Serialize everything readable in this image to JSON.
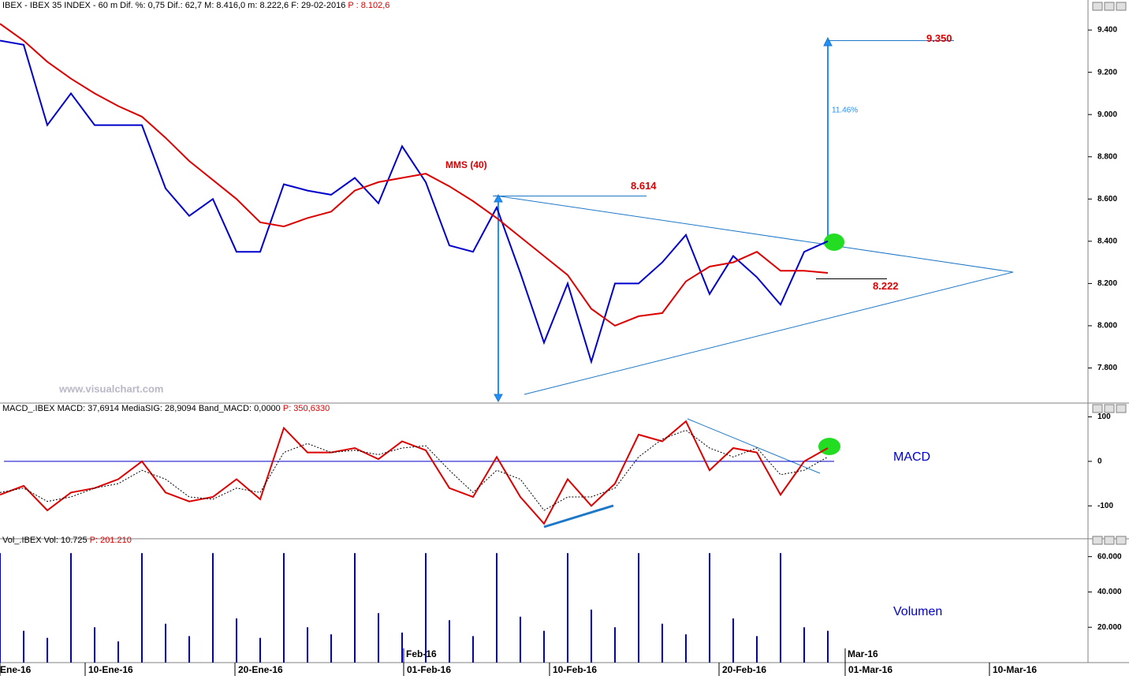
{
  "chart_data": [
    {
      "type": "line",
      "title": "IBEX - IBEX 35 INDEX -  60 m  Dif. %: 0,75  Dif.: 62,7  M: 8.416,0  m: 8.222,6  F: 29-02-2016",
      "title_p": "P : 8.102,6",
      "x": [
        0,
        3,
        6,
        9,
        12,
        15,
        18,
        21,
        24,
        27,
        30,
        33,
        36,
        39,
        42,
        45,
        48,
        51,
        54,
        57,
        60,
        63,
        66,
        69,
        72,
        75,
        78,
        81,
        84,
        87,
        90,
        93,
        96,
        99,
        102,
        105
      ],
      "xlim": [
        0,
        138
      ],
      "ylim": [
        7645,
        9490
      ],
      "yticks": [
        {
          "value": 7800,
          "label": "7.800"
        },
        {
          "value": 8000,
          "label": "8.000"
        },
        {
          "value": 8200,
          "label": "8.200"
        },
        {
          "value": 8400,
          "label": "8.400"
        },
        {
          "value": 8600,
          "label": "8.600"
        },
        {
          "value": 8800,
          "label": "8.800"
        },
        {
          "value": 9000,
          "label": "9.000"
        },
        {
          "value": 9200,
          "label": "9.200"
        },
        {
          "value": 9400,
          "label": "9.400"
        }
      ],
      "series": [
        {
          "color": "#0000cc",
          "values": [
            9350,
            9330,
            8950,
            9100,
            8950,
            8950,
            8950,
            8650,
            8520,
            8600,
            8350,
            8350,
            8670,
            8640,
            8620,
            8700,
            8580,
            8850,
            8680,
            8380,
            8350,
            8560,
            8250,
            7920,
            8200,
            7830,
            8200,
            8200,
            8300,
            8430,
            8150,
            8330,
            8230,
            8100,
            8350,
            8400
          ]
        },
        {
          "name": "MMS (40)",
          "color": "#dd0000",
          "values": [
            9430,
            9350,
            9250,
            9170,
            9100,
            9040,
            8990,
            8890,
            8780,
            8690,
            8600,
            8490,
            8470,
            8510,
            8540,
            8640,
            8680,
            8700,
            8720,
            8660,
            8590,
            8510,
            8420,
            8330,
            8240,
            8080,
            8000,
            8045,
            8060,
            8210,
            8280,
            8300,
            8350,
            8260,
            8260,
            8250
          ]
        }
      ],
      "annotations": [
        {
          "value": 8614,
          "label": "8.614"
        },
        {
          "value": 9350,
          "label": "9.350"
        },
        {
          "value": 8222,
          "label": "8.222"
        }
      ],
      "target_label": "11.46%",
      "watermark": "www.visualchart.com"
    },
    {
      "type": "line",
      "title": "MACD_.IBEX MACD: 37,6914  MediaSIG: 28,9094  Band_MACD: 0,0000",
      "title_p": "P: 350,6330",
      "label": "MACD",
      "x": [
        0,
        3,
        6,
        9,
        12,
        15,
        18,
        21,
        24,
        27,
        30,
        33,
        36,
        39,
        42,
        45,
        48,
        51,
        54,
        57,
        60,
        63,
        66,
        69,
        72,
        75,
        78,
        81,
        84,
        87,
        90,
        93,
        96,
        99,
        102,
        105
      ],
      "xlim": [
        0,
        138
      ],
      "ylim": [
        -165,
        115
      ],
      "yticks": [
        -100,
        0,
        100
      ],
      "series": [
        {
          "color": "#dd0000",
          "values": [
            -75,
            -55,
            -110,
            -70,
            -60,
            -40,
            0,
            -70,
            -90,
            -80,
            -40,
            -85,
            75,
            20,
            20,
            30,
            5,
            45,
            25,
            -60,
            -80,
            10,
            -80,
            -140,
            -40,
            -100,
            -50,
            60,
            45,
            90,
            -20,
            30,
            20,
            -75,
            0,
            30
          ]
        },
        {
          "color": "#000000",
          "dashed": true,
          "values": [
            -70,
            -60,
            -90,
            -80,
            -60,
            -50,
            -20,
            -40,
            -80,
            -85,
            -60,
            -70,
            20,
            40,
            20,
            25,
            15,
            30,
            35,
            -20,
            -70,
            -20,
            -40,
            -110,
            -80,
            -80,
            -60,
            10,
            50,
            70,
            30,
            10,
            30,
            -30,
            -20,
            10
          ]
        }
      ]
    },
    {
      "type": "bar",
      "title": "Vol_.IBEX Vol: 10.725",
      "title_p": "P: 201.210",
      "label": "Volumen",
      "color": "#0000cc",
      "x": [
        0,
        3,
        6,
        9,
        12,
        15,
        18,
        21,
        24,
        27,
        30,
        33,
        36,
        39,
        42,
        45,
        48,
        51,
        54,
        57,
        60,
        63,
        66,
        69,
        72,
        75,
        78,
        81,
        84,
        87,
        90,
        93,
        96,
        99,
        102,
        105
      ],
      "values": [
        62000,
        18000,
        14000,
        62000,
        20000,
        12000,
        62000,
        22000,
        15000,
        62000,
        25000,
        14000,
        62000,
        20000,
        16000,
        62000,
        28000,
        17000,
        62000,
        24000,
        15000,
        62000,
        26000,
        18000,
        62000,
        30000,
        20000,
        62000,
        22000,
        16000,
        62000,
        25000,
        15000,
        62000,
        20000,
        18000
      ],
      "xlim": [
        0,
        138
      ],
      "ylim": [
        0,
        67000
      ],
      "yticks": [
        {
          "value": 20000,
          "label": "20.000"
        },
        {
          "value": 40000,
          "label": "40.000"
        },
        {
          "value": 60000,
          "label": "60.000"
        }
      ],
      "xticks": [
        {
          "value": 0,
          "label": "Ene-16"
        },
        {
          "value": 10.8,
          "label": "10-Ene-16"
        },
        {
          "value": 29.8,
          "label": "20-Ene-16"
        },
        {
          "value": 51.2,
          "label": "01-Feb-16"
        },
        {
          "value": 69.7,
          "label": "10-Feb-16"
        },
        {
          "value": 91.2,
          "label": "20-Feb-16"
        },
        {
          "value": 107.2,
          "label": "01-Mar-16"
        },
        {
          "value": 125.5,
          "label": "10-Mar-16"
        }
      ],
      "month_labels": [
        {
          "value": 51.2,
          "label": "Feb-16"
        },
        {
          "value": 107.2,
          "label": "Mar-16"
        }
      ]
    }
  ]
}
